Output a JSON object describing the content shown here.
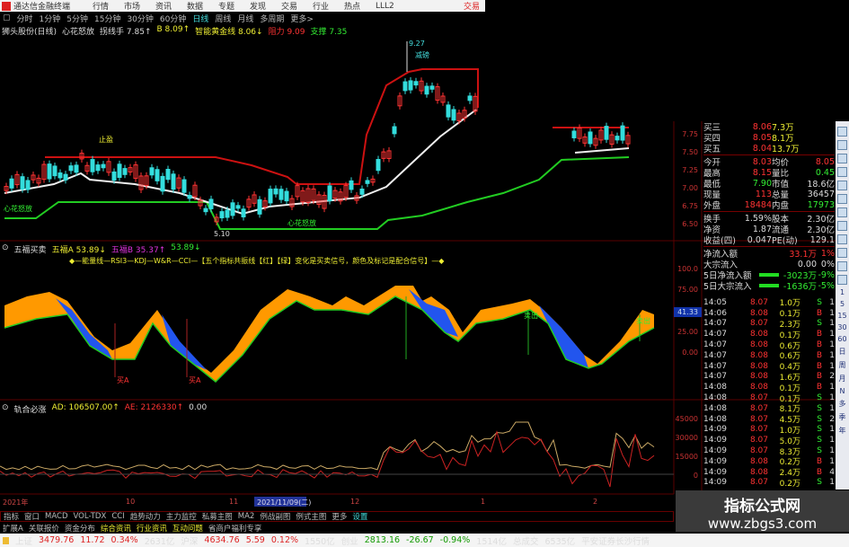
{
  "menubar": {
    "app_title": "通达信金融终端",
    "items": [
      "行情",
      "市场",
      "资讯",
      "数据",
      "专题",
      "发现",
      "交易",
      "行业",
      "热点",
      "LLL2"
    ],
    "trade": "交易"
  },
  "periods": {
    "items": [
      "分时",
      "1分钟",
      "5分钟",
      "15分钟",
      "30分钟",
      "60分钟",
      "日线",
      "周线",
      "月线",
      "多周期",
      "更多>"
    ],
    "active": "日线"
  },
  "main_chart": {
    "stock": "狮头股份(日线)",
    "indicator": "心花怒放",
    "v1": "拐线手 7.85↑",
    "v2": "B 8.09↑",
    "v3": "智能黄金线 8.06↓",
    "v4": "阻力 9.09",
    "v5": "支撑 7.35",
    "labels": {
      "high": "9.27",
      "reduce": "减磅",
      "take_profit": "止盈",
      "bloom1": "心花怒放",
      "bloom2": "心花怒放",
      "low": "5.10"
    },
    "price_axis": [
      "7.75",
      "7.50",
      "7.25",
      "7.00",
      "6.75",
      "6.50"
    ]
  },
  "osc": {
    "title": "五福买卖",
    "a": "五福A 53.89↓",
    "b": "五福B 35.37↑",
    "c": "53.89↓",
    "legend": "◆—能量线—RSI3—KDJ—W&R—CCI—【五个指标共振线【红】【绿】变化是买卖信号，颜色及标记是配合信号】—◆",
    "sell1": "卖出",
    "sell2": "卖出",
    "buy1": "买A",
    "buy2": "买A",
    "axis": [
      "100.0",
      "75.00",
      "41.33",
      "25.00",
      "0.00"
    ]
  },
  "ad": {
    "title": "轨合必涨",
    "ad": "AD: 106507.00↑",
    "ae": "AE: 2126330↑",
    "z": "0.00",
    "axis": [
      "45000",
      "30000",
      "15000",
      "0"
    ]
  },
  "quote": {
    "book": [
      [
        "买三",
        "8.06",
        "7.3万"
      ],
      [
        "买四",
        "8.05",
        "8.1万"
      ],
      [
        "买五",
        "8.04",
        "13.7万"
      ]
    ],
    "stats1": [
      [
        "今开",
        "8.03",
        "均价",
        "8.05"
      ],
      [
        "最高",
        "8.15",
        "量比",
        "0.45"
      ],
      [
        "最低",
        "7.90",
        "市值",
        "18.6亿"
      ],
      [
        "现量",
        "113",
        "总量",
        "36457"
      ],
      [
        "外盘",
        "18484",
        "内盘",
        "17973"
      ]
    ],
    "stats2": [
      [
        "换手",
        "1.59%",
        "股本",
        "2.30亿"
      ],
      [
        "净资",
        "1.87",
        "流通",
        "2.30亿"
      ],
      [
        "收益(四)",
        "0.047",
        "PE(动)",
        "129.1"
      ]
    ],
    "flows": [
      [
        "净流入额",
        "33.1万",
        "1%"
      ],
      [
        "大宗流入",
        "0.00",
        "0%"
      ],
      [
        "5日净流入额",
        "-3023万",
        "-9%"
      ],
      [
        "5日大宗流入",
        "-1636万",
        "-5%"
      ]
    ]
  },
  "ticks": [
    [
      "14:05",
      "8.07",
      "1.0万",
      "S",
      "1"
    ],
    [
      "14:06",
      "8.08",
      "0.1万",
      "B",
      "1"
    ],
    [
      "14:07",
      "8.07",
      "2.3万",
      "S",
      "1"
    ],
    [
      "14:07",
      "8.08",
      "0.1万",
      "B",
      "1"
    ],
    [
      "14:07",
      "8.08",
      "0.6万",
      "B",
      "1"
    ],
    [
      "14:07",
      "8.08",
      "0.6万",
      "B",
      "1"
    ],
    [
      "14:07",
      "8.08",
      "0.4万",
      "B",
      "1"
    ],
    [
      "14:07",
      "8.08",
      "1.6万",
      "B",
      "2"
    ],
    [
      "14:08",
      "8.08",
      "0.1万",
      "B",
      "1"
    ],
    [
      "14:08",
      "8.07",
      "0.1万",
      "S",
      "1"
    ],
    [
      "14:08",
      "8.07",
      "8.1万",
      "S",
      "1"
    ],
    [
      "14:08",
      "8.07",
      "4.5万",
      "S",
      "2"
    ],
    [
      "14:09",
      "8.07",
      "1.0万",
      "S",
      "1"
    ],
    [
      "14:09",
      "8.07",
      "5.0万",
      "S",
      "1"
    ],
    [
      "14:09",
      "8.07",
      "8.3万",
      "S",
      "1"
    ],
    [
      "14:09",
      "8.08",
      "0.2万",
      "B",
      "1"
    ],
    [
      "14:09",
      "8.08",
      "2.4万",
      "B",
      "4"
    ],
    [
      "14:09",
      "8.07",
      "0.2万",
      "S",
      "1"
    ]
  ],
  "side_periods": [
    "1",
    "5",
    "15",
    "30",
    "60",
    "日",
    "周",
    "月",
    "N",
    "多",
    "季",
    "年"
  ],
  "dates": [
    "2021年",
    "10",
    "11",
    "2021/11/09(二)",
    "12",
    "1",
    "2"
  ],
  "tabs1": [
    "指标",
    "窗口",
    "MACD",
    "VOL-TDX",
    "CCI",
    "趋势动力",
    "主力监控",
    "私募主图",
    "MA2",
    "例战副图",
    "例式主图",
    "更多",
    "设置"
  ],
  "tabs2": [
    "扩展A",
    "关联报价",
    "资金分布",
    "综合资讯",
    "行业资讯",
    "互动问题",
    "省商户福利专享"
  ],
  "ticker": [
    [
      "上证",
      "w"
    ],
    [
      "3479.76",
      "r"
    ],
    [
      "11.72",
      "r"
    ],
    [
      "0.34%",
      "r"
    ],
    [
      "2631亿",
      "w"
    ],
    [
      "沪深",
      "w"
    ],
    [
      "4634.76",
      "r"
    ],
    [
      "5.59",
      "r"
    ],
    [
      "0.12%",
      "r"
    ],
    [
      "1550亿",
      "w"
    ],
    [
      "创业",
      "w"
    ],
    [
      "2813.16",
      "g"
    ],
    [
      "-26.67",
      "g"
    ],
    [
      "-0.94%",
      "g"
    ],
    [
      "1514亿",
      "w"
    ],
    [
      "总成交",
      "w"
    ],
    [
      "6535亿",
      "w"
    ],
    [
      "平安证券长沙行情",
      "w"
    ]
  ],
  "watermark": {
    "name": "指标公式网",
    "url": "www.zbgs3.com"
  },
  "colors": {
    "up": "#ff3333",
    "down": "#33dddd",
    "support": "#22cc22",
    "resistance": "#cc1111",
    "ma": "#eeeeee"
  }
}
